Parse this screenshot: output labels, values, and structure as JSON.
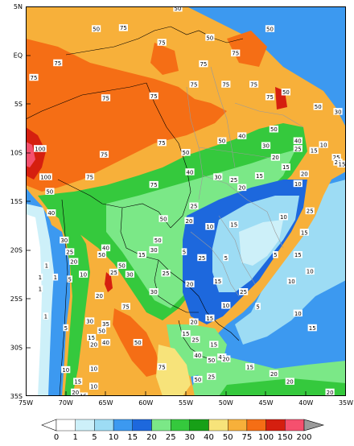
{
  "map": {
    "lat_ticks": [
      "5N",
      "EQ",
      "5S",
      "10S",
      "15S",
      "20S",
      "25S",
      "30S",
      "35S"
    ],
    "lon_ticks": [
      "75W",
      "70W",
      "65W",
      "60W",
      "55W",
      "50W",
      "45W",
      "40W",
      "35W"
    ],
    "lat_range": [
      -35,
      5
    ],
    "lon_range": [
      -75,
      -35
    ],
    "contour_labels": [
      {
        "v": "50",
        "lon": -56.0,
        "lat": 4.8
      },
      {
        "v": "50",
        "lon": -44.5,
        "lat": 2.7
      },
      {
        "v": "50",
        "lon": -66.2,
        "lat": 2.7
      },
      {
        "v": "75",
        "lon": -62.8,
        "lat": 2.8
      },
      {
        "v": "75",
        "lon": -58.0,
        "lat": 1.3
      },
      {
        "v": "50",
        "lon": -52.0,
        "lat": 1.8
      },
      {
        "v": "75",
        "lon": -48.8,
        "lat": 0.2
      },
      {
        "v": "75",
        "lon": -52.8,
        "lat": -0.9
      },
      {
        "v": "75",
        "lon": -71.0,
        "lat": -0.8
      },
      {
        "v": "75",
        "lon": -74.0,
        "lat": -2.3
      },
      {
        "v": "75",
        "lon": -54.0,
        "lat": -3.0
      },
      {
        "v": "75",
        "lon": -50.0,
        "lat": -3.0
      },
      {
        "v": "75",
        "lon": -46.5,
        "lat": -3.0
      },
      {
        "v": "75",
        "lon": -59.0,
        "lat": -4.2
      },
      {
        "v": "75",
        "lon": -65.0,
        "lat": -4.4
      },
      {
        "v": "50",
        "lon": -42.5,
        "lat": -3.8
      },
      {
        "v": "75",
        "lon": -44.5,
        "lat": -4.3
      },
      {
        "v": "50",
        "lon": -38.5,
        "lat": -5.3
      },
      {
        "v": "30",
        "lon": -36.0,
        "lat": -5.8
      },
      {
        "v": "50",
        "lon": -44.0,
        "lat": -7.6
      },
      {
        "v": "40",
        "lon": -41.0,
        "lat": -8.8
      },
      {
        "v": "25",
        "lon": -41.0,
        "lat": -9.6
      },
      {
        "v": "15",
        "lon": -39.0,
        "lat": -9.8
      },
      {
        "v": "10",
        "lon": -37.8,
        "lat": -9.2
      },
      {
        "v": "25",
        "lon": -36.2,
        "lat": -10.5
      },
      {
        "v": "100",
        "lon": -73.2,
        "lat": -9.6
      },
      {
        "v": "75",
        "lon": -65.2,
        "lat": -10.2
      },
      {
        "v": "75",
        "lon": -58.0,
        "lat": -9.0
      },
      {
        "v": "50",
        "lon": -55.0,
        "lat": -10.0
      },
      {
        "v": "50",
        "lon": -50.5,
        "lat": -8.8
      },
      {
        "v": "40",
        "lon": -48.0,
        "lat": -8.3
      },
      {
        "v": "30",
        "lon": -45.0,
        "lat": -9.3
      },
      {
        "v": "20",
        "lon": -43.8,
        "lat": -10.5
      },
      {
        "v": "15",
        "lon": -42.5,
        "lat": -11.5
      },
      {
        "v": "20",
        "lon": -40.2,
        "lat": -12.2
      },
      {
        "v": "10",
        "lon": -41.0,
        "lat": -13.2
      },
      {
        "v": "20",
        "lon": -36.0,
        "lat": -11.0
      },
      {
        "v": "15",
        "lon": -35.5,
        "lat": -11.2
      },
      {
        "v": "75",
        "lon": -67.0,
        "lat": -12.5
      },
      {
        "v": "100",
        "lon": -72.5,
        "lat": -12.5
      },
      {
        "v": "75",
        "lon": -59.0,
        "lat": -13.3
      },
      {
        "v": "40",
        "lon": -54.5,
        "lat": -12.0
      },
      {
        "v": "30",
        "lon": -51.0,
        "lat": -12.5
      },
      {
        "v": "25",
        "lon": -49.0,
        "lat": -12.8
      },
      {
        "v": "20",
        "lon": -48.0,
        "lat": -13.6
      },
      {
        "v": "15",
        "lon": -45.8,
        "lat": -12.4
      },
      {
        "v": "50",
        "lon": -72.0,
        "lat": -14.0
      },
      {
        "v": "25",
        "lon": -54.0,
        "lat": -15.5
      },
      {
        "v": "40",
        "lon": -71.8,
        "lat": -16.2
      },
      {
        "v": "50",
        "lon": -57.8,
        "lat": -16.8
      },
      {
        "v": "20",
        "lon": -54.6,
        "lat": -17.0
      },
      {
        "v": "10",
        "lon": -52.0,
        "lat": -17.6
      },
      {
        "v": "15",
        "lon": -49.0,
        "lat": -17.4
      },
      {
        "v": "10",
        "lon": -42.8,
        "lat": -16.6
      },
      {
        "v": "25",
        "lon": -39.5,
        "lat": -16.0
      },
      {
        "v": "15",
        "lon": -40.2,
        "lat": -18.2
      },
      {
        "v": "50",
        "lon": -58.5,
        "lat": -19.0
      },
      {
        "v": "30",
        "lon": -59.0,
        "lat": -20.0
      },
      {
        "v": "30",
        "lon": -70.2,
        "lat": -19.0
      },
      {
        "v": "25",
        "lon": -69.5,
        "lat": -20.2
      },
      {
        "v": "20",
        "lon": -69.0,
        "lat": -21.2
      },
      {
        "v": "40",
        "lon": -65.0,
        "lat": -19.8
      },
      {
        "v": "50",
        "lon": -65.5,
        "lat": -20.5
      },
      {
        "v": "15",
        "lon": -60.5,
        "lat": -20.5
      },
      {
        "v": "5",
        "lon": -55.2,
        "lat": -20.2
      },
      {
        "v": "25",
        "lon": -53.0,
        "lat": -20.8
      },
      {
        "v": "5",
        "lon": -50.0,
        "lat": -20.8
      },
      {
        "v": "5",
        "lon": -43.8,
        "lat": -20.5
      },
      {
        "v": "15",
        "lon": -41.0,
        "lat": -20.5
      },
      {
        "v": "10",
        "lon": -41.8,
        "lat": -23.2
      },
      {
        "v": "10",
        "lon": -39.5,
        "lat": -22.2
      },
      {
        "v": "1",
        "lon": -72.4,
        "lat": -21.6
      },
      {
        "v": "1",
        "lon": -73.2,
        "lat": -22.8
      },
      {
        "v": "1",
        "lon": -71.3,
        "lat": -22.8
      },
      {
        "v": "1",
        "lon": -73.2,
        "lat": -24.0
      },
      {
        "v": "10",
        "lon": -67.8,
        "lat": -22.5
      },
      {
        "v": "5",
        "lon": -69.5,
        "lat": -23.0
      },
      {
        "v": "25",
        "lon": -64.0,
        "lat": -22.3
      },
      {
        "v": "50",
        "lon": -63.0,
        "lat": -21.6
      },
      {
        "v": "30",
        "lon": -62.0,
        "lat": -22.5
      },
      {
        "v": "25",
        "lon": -57.5,
        "lat": -22.4
      },
      {
        "v": "20",
        "lon": -54.5,
        "lat": -23.5
      },
      {
        "v": "15",
        "lon": -51.0,
        "lat": -23.2
      },
      {
        "v": "25",
        "lon": -47.8,
        "lat": -24.3
      },
      {
        "v": "20",
        "lon": -65.8,
        "lat": -24.7
      },
      {
        "v": "75",
        "lon": -62.5,
        "lat": -25.8
      },
      {
        "v": "30",
        "lon": -59.0,
        "lat": -24.3
      },
      {
        "v": "10",
        "lon": -50.0,
        "lat": -25.7
      },
      {
        "v": "5",
        "lon": -46.0,
        "lat": -25.8
      },
      {
        "v": "10",
        "lon": -41.0,
        "lat": -26.5
      },
      {
        "v": "1",
        "lon": -72.5,
        "lat": -26.8
      },
      {
        "v": "15",
        "lon": -52.0,
        "lat": -27.0
      },
      {
        "v": "15",
        "lon": -55.0,
        "lat": -28.6
      },
      {
        "v": "20",
        "lon": -54.0,
        "lat": -27.4
      },
      {
        "v": "30",
        "lon": -67.0,
        "lat": -27.3
      },
      {
        "v": "35",
        "lon": -65.0,
        "lat": -27.6
      },
      {
        "v": "50",
        "lon": -65.5,
        "lat": -28.3
      },
      {
        "v": "5",
        "lon": -70.0,
        "lat": -28.0
      },
      {
        "v": "15",
        "lon": -66.8,
        "lat": -29.0
      },
      {
        "v": "20",
        "lon": -66.5,
        "lat": -29.7
      },
      {
        "v": "40",
        "lon": -65.0,
        "lat": -29.5
      },
      {
        "v": "50",
        "lon": -61.0,
        "lat": -29.5
      },
      {
        "v": "25",
        "lon": -53.8,
        "lat": -29.2
      },
      {
        "v": "15",
        "lon": -51.5,
        "lat": -29.7
      },
      {
        "v": "40",
        "lon": -53.5,
        "lat": -30.8
      },
      {
        "v": "50",
        "lon": -51.8,
        "lat": -31.3
      },
      {
        "v": "40",
        "lon": -50.5,
        "lat": -31.0
      },
      {
        "v": "20",
        "lon": -50.0,
        "lat": -31.2
      },
      {
        "v": "15",
        "lon": -47.0,
        "lat": -32.0
      },
      {
        "v": "15",
        "lon": -39.2,
        "lat": -28.0
      },
      {
        "v": "10",
        "lon": -70.0,
        "lat": -32.3
      },
      {
        "v": "10",
        "lon": -66.5,
        "lat": -32.2
      },
      {
        "v": "75",
        "lon": -58.0,
        "lat": -32.0
      },
      {
        "v": "25",
        "lon": -51.8,
        "lat": -33.0
      },
      {
        "v": "20",
        "lon": -44.0,
        "lat": -32.7
      },
      {
        "v": "20",
        "lon": -42.0,
        "lat": -33.5
      },
      {
        "v": "50",
        "lon": -53.5,
        "lat": -33.3
      },
      {
        "v": "15",
        "lon": -68.5,
        "lat": -33.5
      },
      {
        "v": "20",
        "lon": -68.8,
        "lat": -34.6
      },
      {
        "v": "10",
        "lon": -66.5,
        "lat": -34.0
      },
      {
        "v": "15",
        "lon": -67.8,
        "lat": -35.0
      },
      {
        "v": "20",
        "lon": -37.0,
        "lat": -34.6
      }
    ]
  },
  "colorbar": {
    "labels": [
      "0",
      "1",
      "5",
      "10",
      "15",
      "20",
      "25",
      "30",
      "40",
      "50",
      "75",
      "100",
      "150",
      "200"
    ],
    "colors": [
      "#ffffff",
      "#cdf0f9",
      "#9ddcf4",
      "#3c99f0",
      "#1d68dd",
      "#7be887",
      "#35c93d",
      "#17a017",
      "#f7e37a",
      "#f7b03a",
      "#f56e15",
      "#d51f0f",
      "#f5506e"
    ],
    "under_color": "#ffffff",
    "over_color": "#9a9a9a"
  }
}
